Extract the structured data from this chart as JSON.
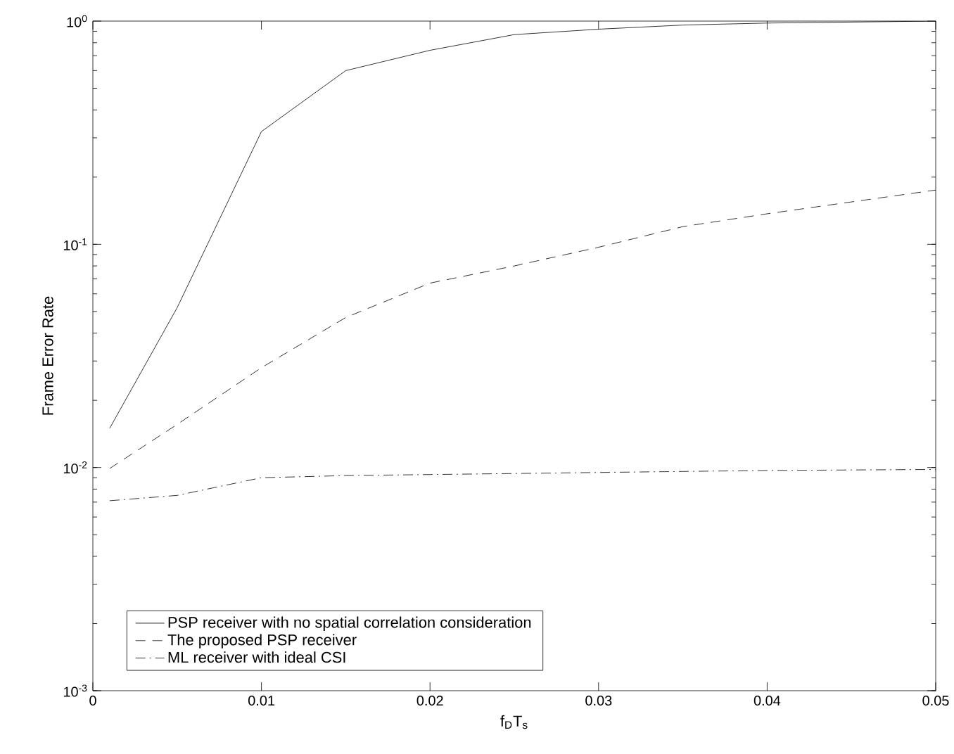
{
  "chart_data": {
    "type": "line",
    "xlabel": "f$_{D}$T$_{s}$",
    "ylabel": "Frame Error Rate",
    "log": "y",
    "xlim": [
      0,
      0.05
    ],
    "ylim": [
      0.001,
      1
    ],
    "xticks": [
      0,
      0.01,
      0.02,
      0.03,
      0.04,
      0.05
    ],
    "yticks": [
      {
        "value": 0.001,
        "label": "10$^{-3}$"
      },
      {
        "value": 0.01,
        "label": "10$^{-2}$"
      },
      {
        "value": 0.1,
        "label": "10$^{-1}$"
      },
      {
        "value": 1,
        "label": "10$^{0}$"
      }
    ],
    "legend": "bottom left",
    "grid": false,
    "marker": "none",
    "series": [
      {
        "name": "PSP receiver with no spatial correlation consideration",
        "color": "#000000",
        "line_style": "solid",
        "x": [
          0.001,
          0.005,
          0.01,
          0.015,
          0.02,
          0.025,
          0.03,
          0.035,
          0.04,
          0.05
        ],
        "values": [
          0.015,
          0.052,
          0.32,
          0.6,
          0.74,
          0.87,
          0.92,
          0.96,
          0.98,
          1.0
        ]
      },
      {
        "name": "The proposed PSP receiver",
        "color": "#000000",
        "line_style": "dashed",
        "x": [
          0.001,
          0.005,
          0.01,
          0.015,
          0.02,
          0.025,
          0.03,
          0.035,
          0.04,
          0.05
        ],
        "values": [
          0.0099,
          0.0156,
          0.028,
          0.047,
          0.067,
          0.08,
          0.097,
          0.12,
          0.137,
          0.175
        ]
      },
      {
        "name": "ML receiver with ideal CSI",
        "color": "#000000",
        "line_style": "dashdotted",
        "x": [
          0.001,
          0.005,
          0.01,
          0.015,
          0.02,
          0.025,
          0.03,
          0.035,
          0.04,
          0.05
        ],
        "values": [
          0.0071,
          0.0075,
          0.009,
          0.0092,
          0.0093,
          0.0094,
          0.0095,
          0.0096,
          0.0097,
          0.0098
        ]
      }
    ]
  }
}
